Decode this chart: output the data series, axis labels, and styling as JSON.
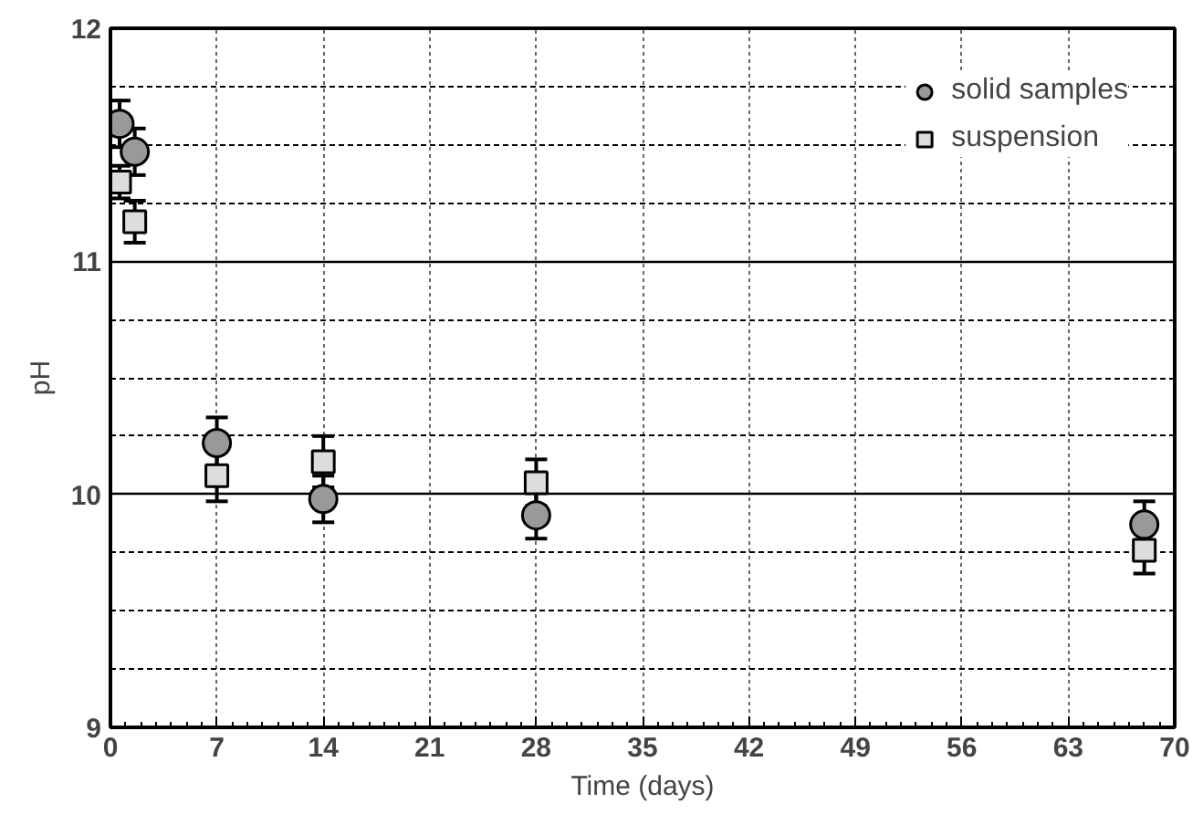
{
  "chart_data": {
    "type": "scatter",
    "xlabel": "Time (days)",
    "ylabel": "pH",
    "xlim": [
      0,
      70
    ],
    "xticks": [
      0,
      7,
      14,
      21,
      28,
      35,
      42,
      49,
      56,
      63,
      70
    ],
    "ylim": [
      9,
      12
    ],
    "yticks": [
      9,
      10,
      11,
      12
    ],
    "grid": true,
    "legend": "top right",
    "series": [
      {
        "name": "solid samples",
        "color": "#999999",
        "marker": "circle",
        "x": [
          0.6,
          1.6,
          7,
          14,
          28,
          68
        ],
        "values": [
          11.59,
          11.47,
          10.22,
          9.98,
          9.91,
          9.87
        ],
        "errors": [
          0.1,
          0.1,
          0.11,
          0.1,
          0.1,
          0.1
        ]
      },
      {
        "name": "suspension",
        "color": "#dddddd",
        "marker": "square",
        "x": [
          0.6,
          1.6,
          7,
          14,
          28,
          68
        ],
        "values": [
          11.34,
          11.17,
          10.08,
          10.14,
          10.05,
          9.76
        ],
        "errors": [
          0.07,
          0.09,
          0.11,
          0.11,
          0.1,
          0.1
        ]
      }
    ]
  }
}
